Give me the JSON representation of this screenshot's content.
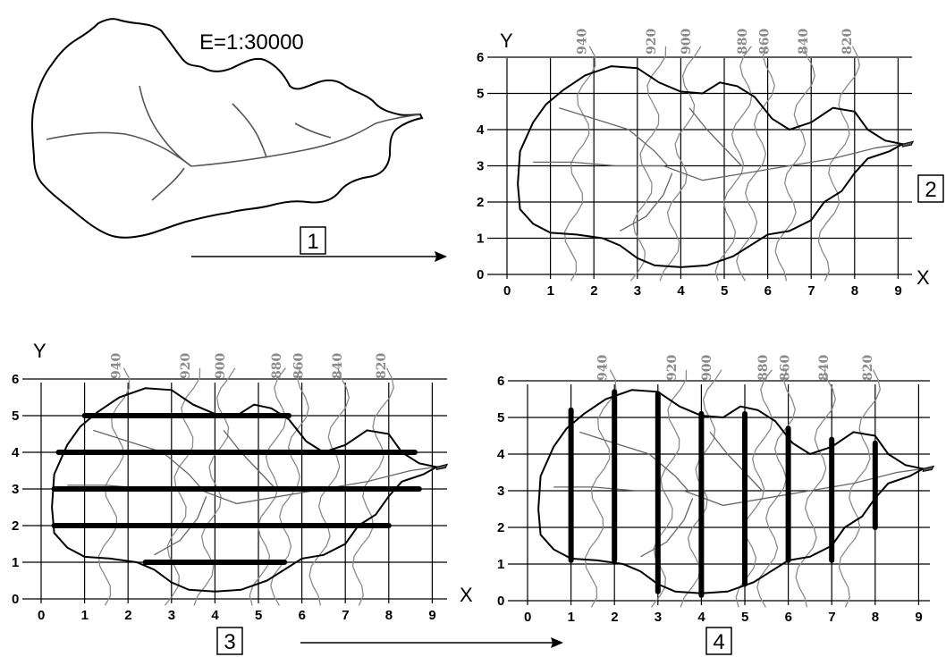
{
  "scale_label": "E=1:30000",
  "steps": [
    "1",
    "2",
    "3",
    "4"
  ],
  "axis_labels": {
    "x": "X",
    "y": "Y"
  },
  "x_ticks": [
    "0",
    "1",
    "2",
    "3",
    "4",
    "5",
    "6",
    "7",
    "8",
    "9"
  ],
  "y_ticks": [
    "0",
    "1",
    "2",
    "3",
    "4",
    "5",
    "6"
  ],
  "contour_labels": [
    "940",
    "920",
    "900",
    "880",
    "860",
    "840",
    "820"
  ],
  "colors": {
    "ink": "#000000",
    "contour": "#8a8a8a",
    "stream": "#666666"
  },
  "panels": [
    {
      "step": "1",
      "content": "watershed boundary with stream network"
    },
    {
      "step": "2",
      "content": "grid overlay with contour lines"
    },
    {
      "step": "3",
      "content": "horizontal grid lines inside watershed",
      "direction": "horizontal",
      "bar_rows": [
        1,
        2,
        3,
        4,
        5
      ]
    },
    {
      "step": "4",
      "content": "vertical grid lines inside watershed",
      "direction": "vertical",
      "bar_cols": [
        1,
        2,
        3,
        4,
        5,
        6,
        7,
        8
      ]
    }
  ]
}
